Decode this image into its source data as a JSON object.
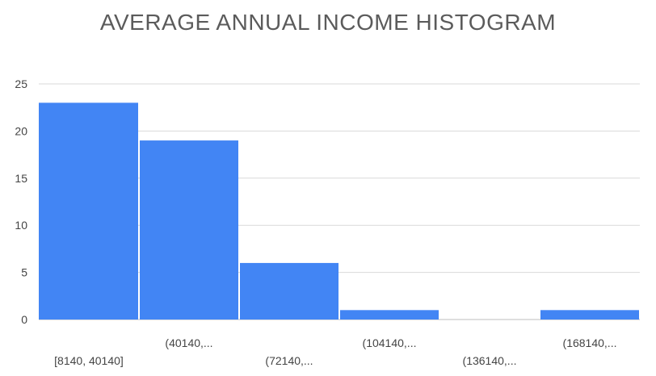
{
  "chart_data": {
    "type": "bar",
    "title": "AVERAGE ANNUAL INCOME HISTOGRAM",
    "xlabel": "",
    "ylabel": "",
    "categories": [
      "[8140, 40140]",
      "(40140,...",
      "(72140,...",
      "(104140,...",
      "(136140,...",
      "(168140,..."
    ],
    "values": [
      23,
      19,
      6,
      1,
      0,
      1
    ],
    "ylim": [
      0,
      25
    ],
    "yticks": [
      0,
      5,
      10,
      15,
      20,
      25
    ],
    "grid": true,
    "colors": {
      "bar": "#4285f4",
      "grid": "#d9d9d9",
      "axis_text": "#444444",
      "title": "#5b5b5b"
    }
  }
}
